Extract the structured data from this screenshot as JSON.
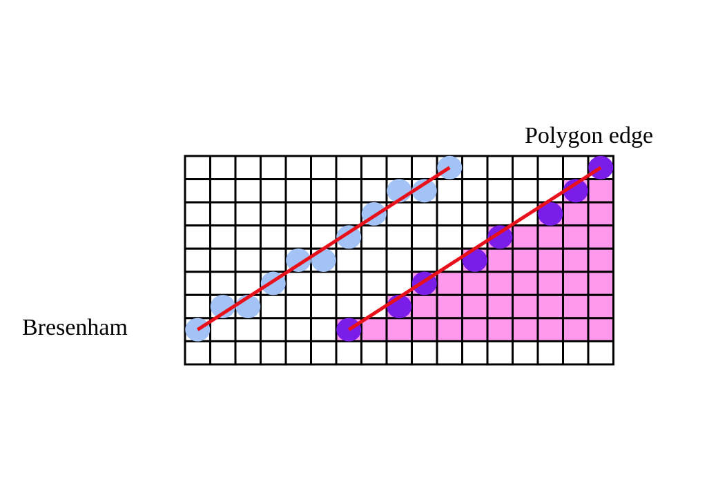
{
  "labels": {
    "polygon_edge": "Polygon edge",
    "bresenham": "Bresenham"
  }
}
